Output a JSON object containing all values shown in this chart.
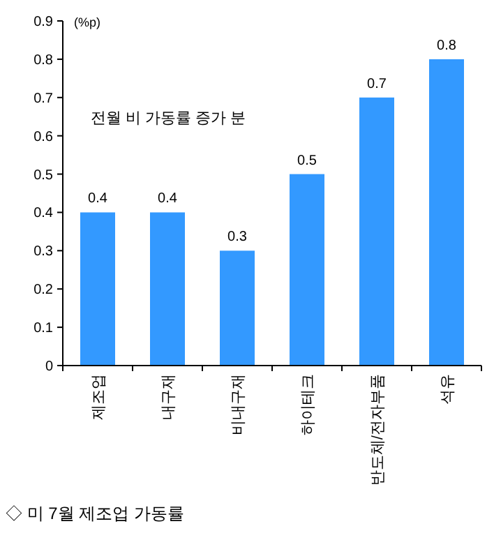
{
  "chart_data": {
    "type": "bar",
    "ylabel": "(%p)",
    "categories": [
      "제조업",
      "내구재",
      "비내구재",
      "하이테크",
      "반도체/전자부품",
      "석유"
    ],
    "values": [
      0.4,
      0.4,
      0.3,
      0.5,
      0.7,
      0.8
    ],
    "color": "#3399ff",
    "ylim": [
      0,
      0.9
    ],
    "yticks": [
      0,
      0.1,
      0.2,
      0.3,
      0.4,
      0.5,
      0.6,
      0.7,
      0.8,
      0.9
    ],
    "data_labels": true,
    "annotations": [
      "전월 비 가동률 증가 분",
      "◇ 미 7월 제조업 가동률"
    ]
  }
}
